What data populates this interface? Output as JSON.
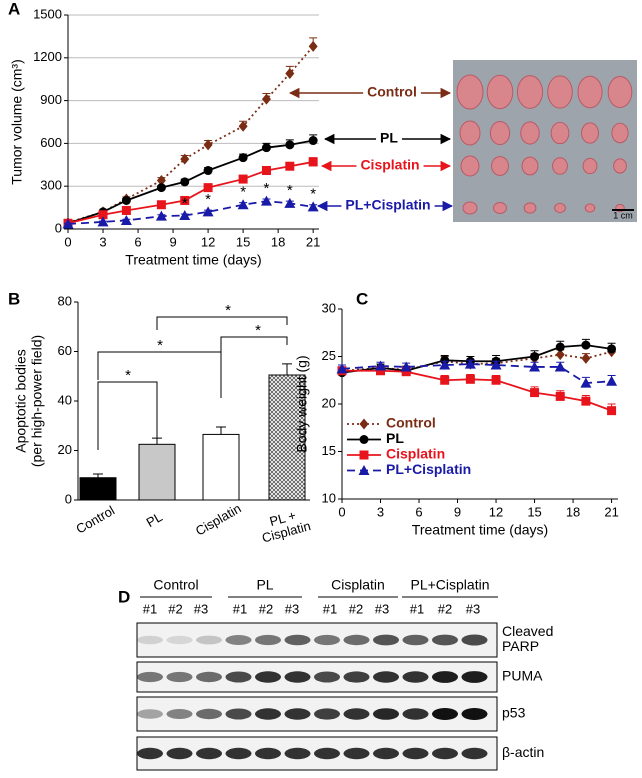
{
  "panel_labels": [
    "A",
    "B",
    "C",
    "D"
  ],
  "chart_data": [
    {
      "type": "line",
      "x": [
        0,
        3,
        5,
        8,
        10,
        12,
        15,
        17,
        19,
        21
      ],
      "xlim": [
        0,
        21.5
      ],
      "xticks": [
        0,
        3,
        6,
        9,
        12,
        15,
        18,
        21
      ],
      "ylim": [
        0,
        1500
      ],
      "yticks": [
        0,
        300,
        600,
        900,
        1200,
        1500
      ],
      "grid": true,
      "x_label": "Treatment time (days)",
      "y_label": "Tumor volume (cm³)",
      "series": [
        {
          "name": "Control",
          "color": "#7a2d14",
          "marker": "diamond",
          "line_style": "dotted",
          "values": [
            45,
            120,
            210,
            340,
            490,
            590,
            720,
            910,
            1090,
            1280
          ],
          "errors": [
            5,
            10,
            15,
            20,
            25,
            30,
            35,
            40,
            50,
            60
          ]
        },
        {
          "name": "PL",
          "color": "#000000",
          "marker": "circle",
          "line_style": "solid",
          "values": [
            40,
            120,
            200,
            290,
            330,
            410,
            500,
            570,
            590,
            620
          ],
          "errors": [
            5,
            10,
            12,
            15,
            20,
            20,
            25,
            30,
            35,
            40
          ]
        },
        {
          "name": "Cisplatin",
          "color": "#e8141c",
          "marker": "square",
          "line_style": "solid",
          "values": [
            40,
            100,
            130,
            170,
            200,
            290,
            350,
            410,
            440,
            470
          ],
          "errors": [
            5,
            8,
            10,
            12,
            15,
            18,
            20,
            25,
            25,
            30
          ]
        },
        {
          "name": "PL+Cisplatin",
          "color": "#1a1aa8",
          "marker": "triangle",
          "line_style": "dashed",
          "values": [
            35,
            50,
            60,
            90,
            95,
            120,
            170,
            195,
            180,
            155
          ],
          "errors": [
            5,
            5,
            8,
            10,
            10,
            12,
            15,
            15,
            15,
            15
          ]
        }
      ],
      "significance": {
        "label": "*",
        "x": [
          10,
          12,
          15,
          17,
          19,
          21
        ]
      },
      "photo_scale_label": "1 cm"
    },
    {
      "type": "bar",
      "categories": [
        "Control",
        "PL",
        "Cisplatin",
        "PL + Cisplatin"
      ],
      "values": [
        9,
        22.5,
        26.5,
        50.5
      ],
      "errors": [
        1.5,
        2.5,
        3,
        4.5
      ],
      "colors": [
        "#000000",
        "#c8c8c8",
        "#ffffff",
        "#808080"
      ],
      "fills": [
        "solid",
        "solid",
        "solid",
        "crosshatch"
      ],
      "ylim": [
        0,
        80
      ],
      "yticks": [
        0,
        20,
        40,
        60,
        80
      ],
      "y_label": [
        "Apoptotic bodies",
        "(per high-power field)"
      ],
      "significance_label": "*"
    },
    {
      "type": "line",
      "x": [
        0,
        3,
        5,
        8,
        10,
        12,
        15,
        17,
        19,
        21
      ],
      "xlim": [
        0,
        21.5
      ],
      "xticks": [
        0,
        3,
        6,
        9,
        12,
        15,
        18,
        21
      ],
      "ylim": [
        10,
        30
      ],
      "yticks": [
        10,
        15,
        20,
        25,
        30
      ],
      "grid": false,
      "legend": "lower left",
      "x_label": "Treatment time (days)",
      "y_label": "Body weight (g)",
      "series": [
        {
          "name": "Control",
          "color": "#7a2d14",
          "marker": "diamond",
          "line_style": "dotted",
          "values": [
            23.5,
            23.8,
            23.6,
            24.5,
            24.2,
            24.3,
            24.8,
            25.2,
            24.8,
            25.5
          ],
          "errors": [
            0.4,
            0.4,
            0.4,
            0.5,
            0.5,
            0.5,
            0.5,
            0.5,
            0.5,
            0.5
          ]
        },
        {
          "name": "PL",
          "color": "#000000",
          "marker": "circle",
          "line_style": "solid",
          "values": [
            23.3,
            23.8,
            23.5,
            24.6,
            24.5,
            24.5,
            25,
            26,
            26.2,
            25.8
          ],
          "errors": [
            0.4,
            0.4,
            0.4,
            0.5,
            0.5,
            0.6,
            0.6,
            0.6,
            0.6,
            0.6
          ]
        },
        {
          "name": "Cisplatin",
          "color": "#e8141c",
          "marker": "square",
          "line_style": "solid",
          "values": [
            23.5,
            23.5,
            23.4,
            22.5,
            22.6,
            22.5,
            21.2,
            20.8,
            20.3,
            19.3
          ],
          "errors": [
            0.4,
            0.4,
            0.4,
            0.5,
            0.5,
            0.5,
            0.6,
            0.6,
            0.6,
            0.7
          ]
        },
        {
          "name": "PL+Cisplatin",
          "color": "#1a1aa8",
          "marker": "triangle",
          "line_style": "dashed",
          "values": [
            23.7,
            24,
            23.9,
            24.1,
            24.2,
            24.1,
            23.9,
            23.9,
            22.2,
            22.4
          ],
          "errors": [
            0.4,
            0.4,
            0.4,
            0.4,
            0.4,
            0.4,
            0.5,
            0.5,
            0.6,
            0.6
          ]
        }
      ]
    }
  ],
  "blot": {
    "groups": [
      "Control",
      "PL",
      "Cisplatin",
      "PL+Cisplatin"
    ],
    "lanes": [
      "#1",
      "#2",
      "#3"
    ],
    "rows": [
      [
        "Cleaved",
        "PARP"
      ],
      [
        "PUMA"
      ],
      [
        "p53"
      ],
      [
        "β-actin"
      ]
    ]
  }
}
